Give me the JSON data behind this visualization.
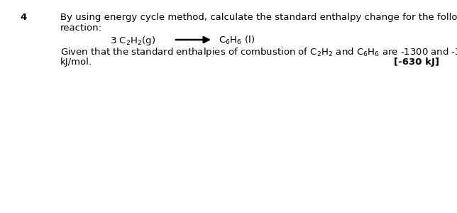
{
  "question_number": "4",
  "background_color": "#ffffff",
  "text_color": "#000000",
  "figsize": [
    6.44,
    3.0
  ],
  "dpi": 100,
  "line1": "By using energy cycle method, calculate the standard enthalpy change for the following",
  "line2": "reaction:",
  "line_kj": "kJ/mol.",
  "answer": "[-630 kJ]",
  "font_size": 9.5,
  "font_family": "DejaVu Sans"
}
